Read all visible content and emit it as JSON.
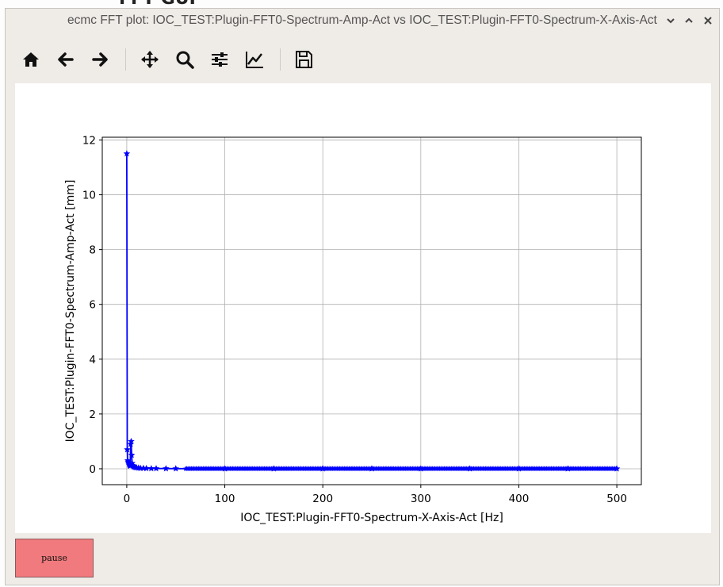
{
  "background": {
    "partial_title": "FFT GUI"
  },
  "window": {
    "title": "ecmc FFT plot: IOC_TEST:Plugin-FFT0-Spectrum-Amp-Act vs IOC_TEST:Plugin-FFT0-Spectrum-X-Axis-Act",
    "controls": [
      "chevron-down",
      "chevron-up",
      "close"
    ]
  },
  "toolbar": {
    "icons": [
      "home-icon",
      "back-arrow-icon",
      "forward-arrow-icon",
      "pan-icon",
      "zoom-icon",
      "configure-subplots-icon",
      "edit-axis-icon",
      "save-icon"
    ]
  },
  "colors": {
    "series": "#0000ff",
    "pause_button": "#f07a7d",
    "window_bg": "#efebe7"
  },
  "chart_data": {
    "type": "line",
    "title": "",
    "xlabel": "IOC_TEST:Plugin-FFT0-Spectrum-X-Axis-Act [Hz]",
    "ylabel": "IOC_TEST:Plugin-FFT0-Spectrum-Amp-Act [mm]",
    "xlim": [
      -25,
      525
    ],
    "ylim": [
      -0.58,
      12.1
    ],
    "xticks": [
      0,
      100,
      200,
      300,
      400,
      500
    ],
    "yticks": [
      0,
      2,
      4,
      6,
      8,
      10,
      12
    ],
    "grid": true,
    "marker": "star",
    "series": [
      {
        "points": [
          [
            0,
            11.5
          ],
          [
            0.5,
            0.7
          ],
          [
            1,
            0.3
          ],
          [
            1.5,
            0.25
          ],
          [
            2,
            0.2
          ],
          [
            2.5,
            0.15
          ],
          [
            3,
            0.12
          ],
          [
            3.5,
            0.1
          ],
          [
            4,
            0.9
          ],
          [
            4.5,
            1.0
          ],
          [
            5,
            0.5
          ],
          [
            5.5,
            0.2
          ],
          [
            6,
            0.12
          ],
          [
            7,
            0.08
          ],
          [
            8,
            0.06
          ],
          [
            9,
            0.05
          ],
          [
            10,
            0.04
          ],
          [
            12,
            0.03
          ],
          [
            14,
            0.02
          ],
          [
            17,
            0.02
          ],
          [
            20,
            0.015
          ],
          [
            25,
            0.01
          ],
          [
            30,
            0.01
          ],
          [
            40,
            0.008
          ],
          [
            50,
            0.005
          ],
          [
            100,
            0.003
          ],
          [
            150,
            0.003
          ],
          [
            200,
            0.002
          ],
          [
            250,
            0.002
          ],
          [
            300,
            0.002
          ],
          [
            350,
            0.002
          ],
          [
            400,
            0.002
          ],
          [
            450,
            0.002
          ],
          [
            500,
            0.002
          ]
        ]
      }
    ]
  },
  "pause_button": {
    "label": "pause"
  }
}
